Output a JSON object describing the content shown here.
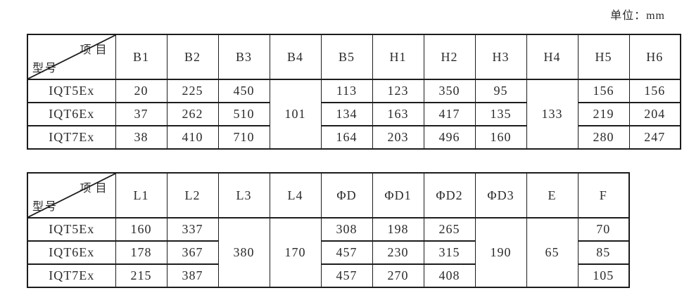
{
  "unit_label": "单位：mm",
  "colors": {
    "border": "#1c1c1c",
    "text": "#2b2b2b",
    "background": "#ffffff"
  },
  "tables": [
    {
      "corner_top": "项目",
      "corner_bottom": "型号",
      "columns": [
        "B1",
        "B2",
        "B3",
        "B4",
        "B5",
        "H1",
        "H2",
        "H3",
        "H4",
        "H5",
        "H6"
      ],
      "merged_note": "B4 and H4 values span all three model rows",
      "rows": [
        {
          "model": "IQT5Ex",
          "cells": [
            "20",
            "225",
            "450",
            "101",
            "113",
            "123",
            "350",
            "95",
            "133",
            "156",
            "156"
          ]
        },
        {
          "model": "IQT6Ex",
          "cells": [
            "37",
            "262",
            "510",
            "134",
            "163",
            "417",
            "135",
            "219",
            "204"
          ]
        },
        {
          "model": "IQT7Ex",
          "cells": [
            "38",
            "410",
            "710",
            "164",
            "203",
            "496",
            "160",
            "280",
            "247"
          ]
        }
      ]
    },
    {
      "corner_top": "项目",
      "corner_bottom": "型号",
      "columns": [
        "L1",
        "L2",
        "L3",
        "L4",
        "ΦD",
        "ΦD1",
        "ΦD2",
        "ΦD3",
        "E",
        "F"
      ],
      "merged_note": "L3, L4, ΦD3 and E values span all three model rows",
      "rows": [
        {
          "model": "IQT5Ex",
          "cells": [
            "160",
            "337",
            "380",
            "170",
            "308",
            "198",
            "265",
            "190",
            "65",
            "70"
          ]
        },
        {
          "model": "IQT6Ex",
          "cells": [
            "178",
            "367",
            "457",
            "230",
            "315",
            "85"
          ]
        },
        {
          "model": "IQT7Ex",
          "cells": [
            "215",
            "387",
            "457",
            "270",
            "408",
            "105"
          ]
        }
      ]
    }
  ]
}
